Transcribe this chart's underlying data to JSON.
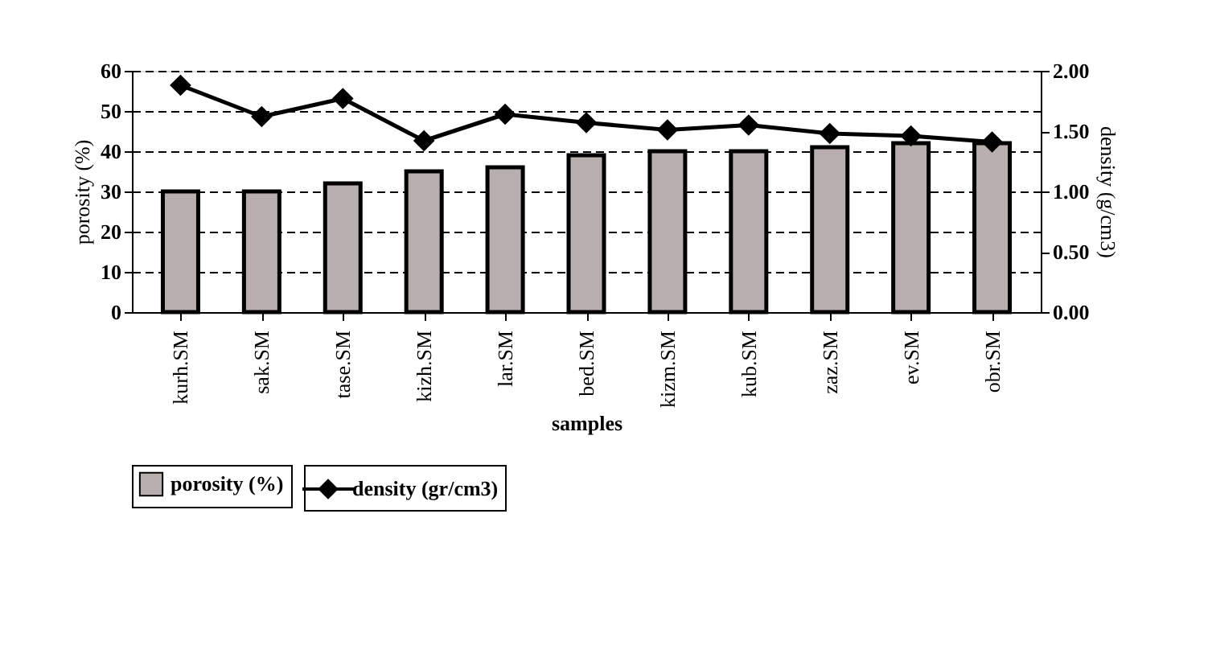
{
  "chart_data": {
    "type": "bar",
    "xlabel": "samples",
    "ylabel": "porosity (%)",
    "y2label": "density (g/cm3)",
    "categories": [
      "kurh.SM",
      "sak.SM",
      "tase.SM",
      "kizh.SM",
      "lar.SM",
      "bed.SM",
      "kizm.SM",
      "kub.SM",
      "zaz.SM",
      "ev.SM",
      "obr.SM"
    ],
    "series": [
      {
        "name": "porosity (%)",
        "color": "#b8aeae",
        "values": [
          30,
          30,
          32,
          35,
          36,
          39,
          40,
          40,
          41,
          42,
          42
        ]
      },
      {
        "name": "density (gr/cm3)",
        "type": "line",
        "axis": "y2",
        "color": "#000000",
        "marker": "diamond",
        "values": [
          1.88,
          1.62,
          1.77,
          1.42,
          1.64,
          1.57,
          1.51,
          1.55,
          1.48,
          1.46,
          1.41
        ]
      }
    ],
    "ylim": [
      0,
      60
    ],
    "yticks": [
      0,
      10,
      20,
      30,
      40,
      50,
      60
    ],
    "y2lim": [
      0,
      2
    ],
    "y2ticks": [
      {
        "value": 0,
        "label": "0.00"
      },
      {
        "value": 0.5,
        "label": "0.50"
      },
      {
        "value": 1,
        "label": "1.00"
      },
      {
        "value": 1.5,
        "label": "1.50"
      },
      {
        "value": 2,
        "label": "2.00"
      }
    ],
    "grid": "y",
    "legend": "bottom",
    "line_style": "solid"
  }
}
